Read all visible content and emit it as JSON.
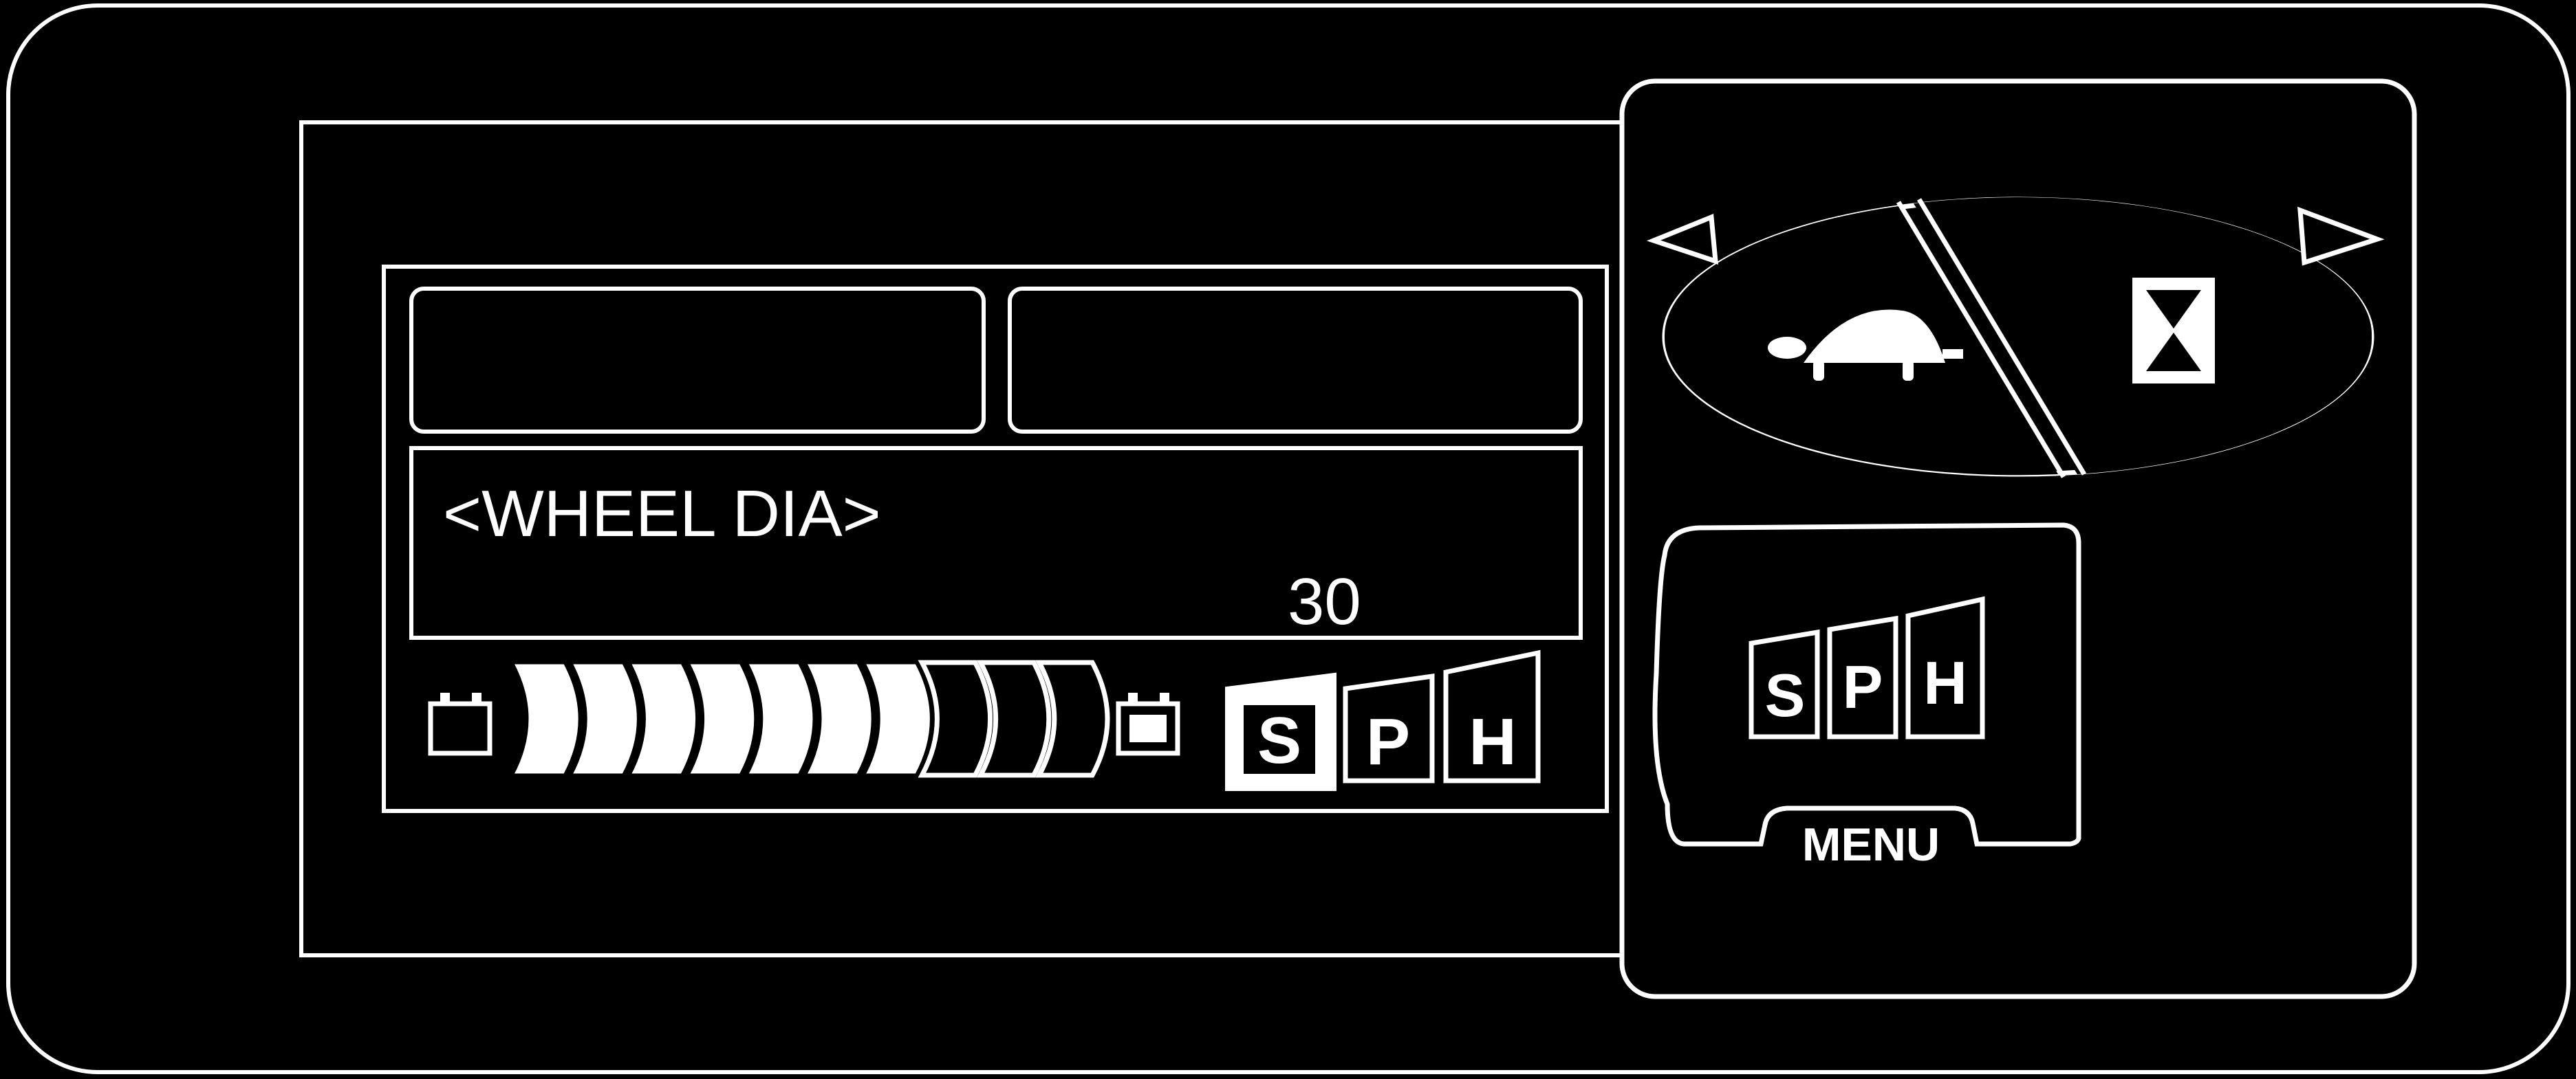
{
  "colors": {
    "background": "#000000",
    "line": "#ffffff"
  },
  "display": {
    "message_line": "<WHEEL DIA>",
    "value": "30",
    "top_left_segment": "",
    "top_right_segment": ""
  },
  "battery_gauge": {
    "total_segments": 10,
    "filled_segments": 7,
    "left_icon": "battery-icon",
    "right_icon": "battery-icon"
  },
  "mode_indicators": {
    "labels": [
      "S",
      "P",
      "H"
    ],
    "selected": "S"
  },
  "controls": {
    "speed_dial": {
      "left_icon": "turtle-icon",
      "right_icon": "hourglass-icon"
    },
    "menu_button": {
      "modes": [
        "S",
        "P",
        "H"
      ],
      "label": "MENU"
    }
  }
}
